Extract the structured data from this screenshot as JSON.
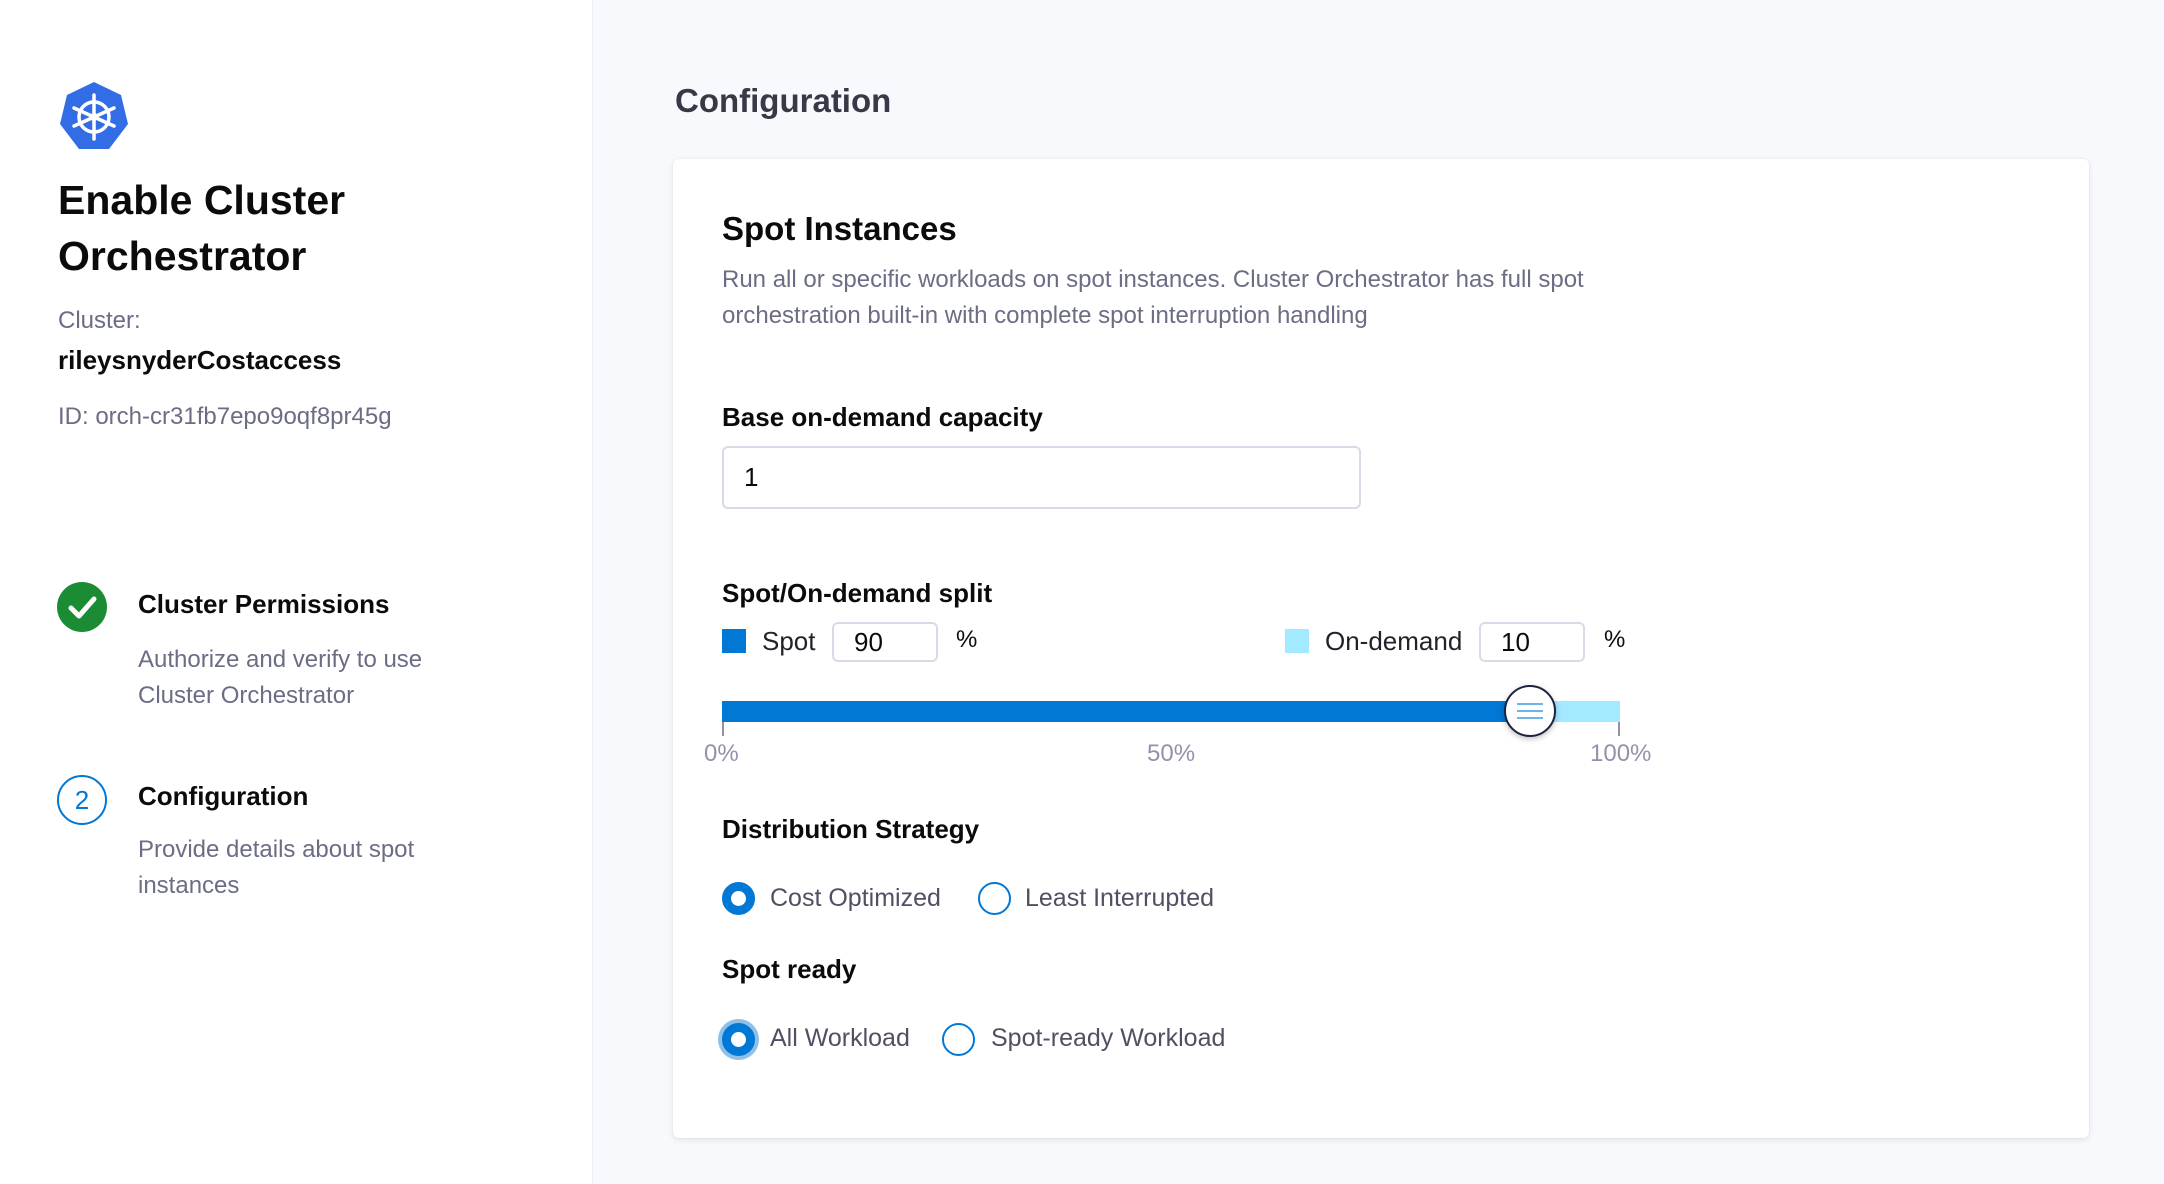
{
  "sidebar": {
    "logo": "kubernetes-icon",
    "title_line1": "Enable Cluster",
    "title_line2": "Orchestrator",
    "cluster_label": "Cluster:",
    "cluster_name": "rileysnyderCostaccess",
    "cluster_id": "ID: orch-cr31fb7epo9oqf8pr45g",
    "steps": [
      {
        "title": "Cluster Permissions",
        "desc_line1": "Authorize and verify to use",
        "desc_line2": "Cluster Orchestrator",
        "status": "complete",
        "color": "#1b8c34"
      },
      {
        "number": "2",
        "title": "Configuration",
        "desc_line1": "Provide details about spot",
        "desc_line2": "instances",
        "status": "current",
        "color": "#0278d5"
      }
    ]
  },
  "main": {
    "title": "Configuration",
    "card": {
      "title": "Spot Instances",
      "desc_line1": "Run all or specific workloads on spot instances. Cluster Orchestrator has full spot",
      "desc_line2": "orchestration built-in with complete spot interruption handling",
      "base_capacity": {
        "label": "Base on-demand capacity",
        "value": "1"
      },
      "split": {
        "label": "Spot/On-demand split",
        "spot_label": "Spot",
        "spot_value": "90",
        "spot_color": "#0278d5",
        "ondemand_label": "On-demand",
        "ondemand_value": "10",
        "ondemand_color": "#a3e9ff",
        "percent": "%",
        "slider_spot_percent": 90,
        "ticks": [
          "0%",
          "50%",
          "100%"
        ]
      },
      "distribution": {
        "label": "Distribution Strategy",
        "options": [
          "Cost Optimized",
          "Least Interrupted"
        ],
        "selected": "Cost Optimized"
      },
      "spot_ready": {
        "label": "Spot ready",
        "options": [
          "All Workload",
          "Spot-ready Workload"
        ],
        "selected": "All Workload"
      }
    }
  }
}
